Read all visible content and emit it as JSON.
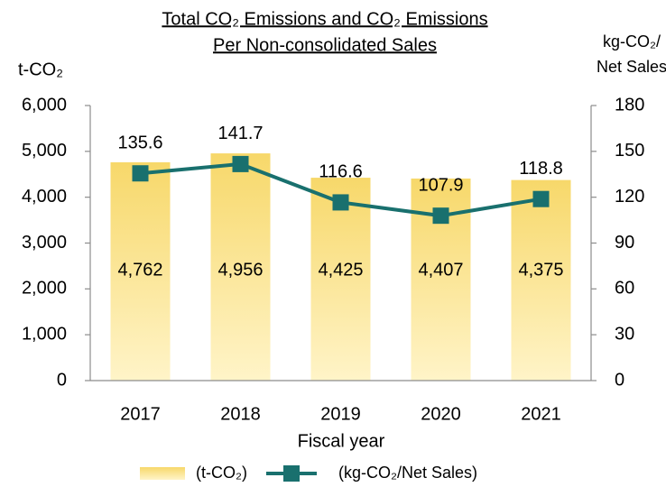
{
  "chart_data": {
    "type": "bar_line",
    "title": [
      "Total CO₂ Emissions and CO₂ Emissions",
      "Per Non-consolidated Sales"
    ],
    "y_label": "t-CO₂",
    "y2_label": [
      "kg-CO₂/",
      "Net Sales"
    ],
    "x_label": "Fiscal year",
    "categories": [
      "2017",
      "2018",
      "2019",
      "2020",
      "2021"
    ],
    "series": [
      {
        "name": "(t-CO₂)",
        "type": "bar",
        "color": "#f7d86a",
        "values": [
          4762,
          4956,
          4425,
          4407,
          4375
        ],
        "value_labels": [
          "4,762",
          "4,956",
          "4,425",
          "4,407",
          "4,375"
        ]
      },
      {
        "name": "(kg-CO₂/Net Sales)",
        "type": "line",
        "axis": "y2",
        "color": "#19706e",
        "values": [
          135.6,
          141.7,
          116.6,
          107.9,
          118.8
        ]
      }
    ],
    "ylim": [
      0,
      6000
    ],
    "yticks": [
      0,
      {
        "value": 1000,
        "label": "1,000"
      },
      {
        "value": 2000,
        "label": "2,000"
      },
      {
        "value": 3000,
        "label": "3,000"
      },
      {
        "value": 4000,
        "label": "4,000"
      },
      {
        "value": 5000,
        "label": "5,000"
      },
      {
        "value": 6000,
        "label": "6,000"
      }
    ],
    "y2lim": [
      0,
      180
    ],
    "y2ticks": [
      0,
      30,
      60,
      90,
      120,
      150,
      180
    ],
    "legend": "bottom"
  }
}
